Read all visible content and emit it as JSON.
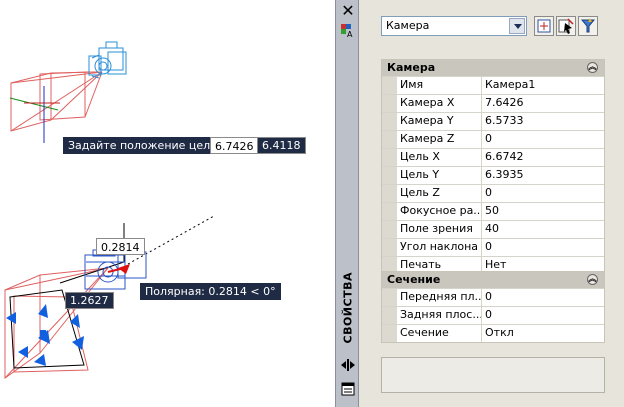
{
  "canvas": {
    "prompt": "Задайте положение цели:",
    "target_x": "6.7426",
    "target_y": "6.4118",
    "dim_upper": "0.2814",
    "dim_lower": "1.2627",
    "polar_tooltip": "Полярная: 0.2814 < 0°"
  },
  "palette": {
    "title": "СВОЙСТВА",
    "selector_value": "Камера",
    "sections": [
      {
        "title": "Камера",
        "rows": [
          {
            "name": "Имя",
            "value": "Камера1"
          },
          {
            "name": "Камера X",
            "value": "7.6426"
          },
          {
            "name": "Камера Y",
            "value": "6.5733"
          },
          {
            "name": "Камера Z",
            "value": "0"
          },
          {
            "name": "Цель X",
            "value": "6.6742"
          },
          {
            "name": "Цель Y",
            "value": "6.3935"
          },
          {
            "name": "Цель Z",
            "value": "0"
          },
          {
            "name": "Фокусное ра...",
            "value": "50"
          },
          {
            "name": "Поле зрения",
            "value": "40"
          },
          {
            "name": "Угол наклона",
            "value": "0"
          },
          {
            "name": "Печать",
            "value": "Нет"
          }
        ]
      },
      {
        "title": "Сечение",
        "rows": [
          {
            "name": "Передняя пл...",
            "value": "0"
          },
          {
            "name": "Задняя плос...",
            "value": "0"
          },
          {
            "name": "Сечение",
            "value": "Откл"
          }
        ]
      }
    ]
  },
  "colors": {
    "frustum": "#e06060",
    "camera_glyph": "#2a8fd8",
    "grip": "#1060e0",
    "tooltip_bg": "#1f2b44"
  }
}
